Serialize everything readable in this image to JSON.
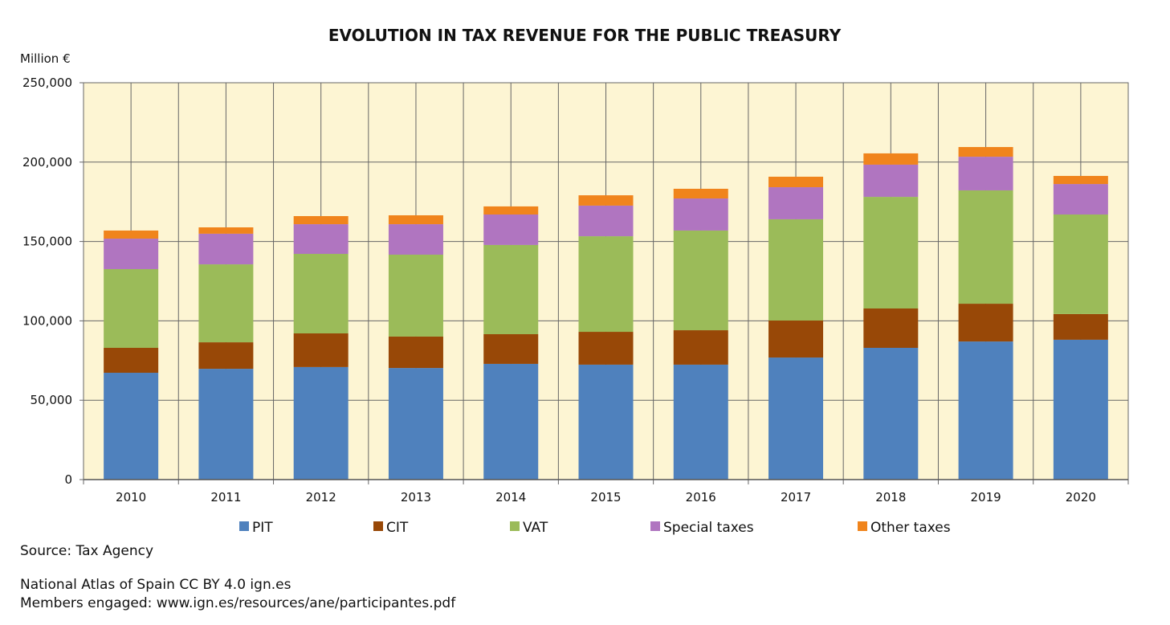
{
  "chart_data": {
    "type": "bar",
    "stacked": true,
    "title": "EVOLUTION IN TAX REVENUE FOR THE PUBLIC TREASURY",
    "ylabel": "Million €",
    "xlabel": "",
    "ylim": [
      0,
      250000
    ],
    "yticks": [
      "0",
      "50,000",
      "100,000",
      "150,000",
      "200,000",
      "250,000"
    ],
    "ytick_values": [
      0,
      50000,
      100000,
      150000,
      200000,
      250000
    ],
    "grid": true,
    "legend_position": "bottom",
    "categories": [
      "2010",
      "2011",
      "2012",
      "2013",
      "2014",
      "2015",
      "2016",
      "2017",
      "2018",
      "2019",
      "2020"
    ],
    "series": [
      {
        "name": "PIT",
        "color": "#4f81bd",
        "values": [
          67300,
          69800,
          70900,
          70300,
          72900,
          72400,
          72400,
          76900,
          83000,
          87000,
          88100
        ]
      },
      {
        "name": "CIT",
        "color": "#984807",
        "values": [
          15700,
          16700,
          21200,
          19800,
          18700,
          20700,
          21700,
          23300,
          24800,
          23800,
          16200
        ]
      },
      {
        "name": "VAT",
        "color": "#9bbb59",
        "values": [
          49600,
          49100,
          50100,
          51600,
          56200,
          60200,
          62800,
          63800,
          70300,
          71400,
          62700
        ]
      },
      {
        "name": "Special taxes",
        "color": "#b075c0",
        "values": [
          19200,
          19300,
          18700,
          19200,
          19200,
          19300,
          20200,
          20200,
          20300,
          21200,
          19200
        ]
      },
      {
        "name": "Other taxes",
        "color": "#f0841c",
        "values": [
          5100,
          4000,
          5100,
          5600,
          5100,
          6500,
          6100,
          6600,
          7100,
          6100,
          5100
        ]
      }
    ],
    "plot_background": "#fdf5d3"
  },
  "footer": {
    "source": "Source: Tax Agency",
    "license": "National Atlas of Spain CC BY 4.0 ign.es",
    "members": "Members engaged: www.ign.es/resources/ane/participantes.pdf"
  }
}
